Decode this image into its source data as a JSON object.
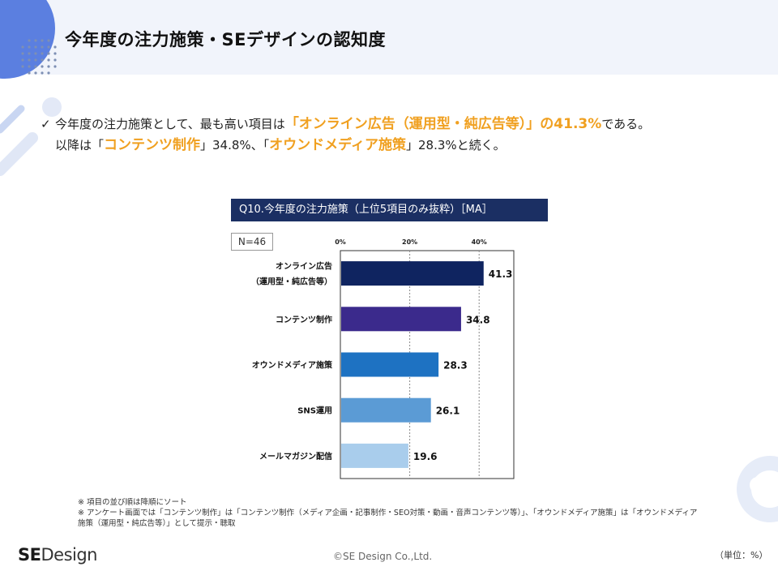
{
  "page_title": "今年度の注力施策・SEデザインの認知度",
  "summary": {
    "line1_pre": "今年度の注力施策として、最も高い項目は",
    "line1_highlight": "「オンライン広告（運用型・純広告等）」の41.3%",
    "line1_post": "である。",
    "line2_pre": "以降は「",
    "line2_highlight1": "コンテンツ制作",
    "line2_mid1": "」34.8%、「",
    "line2_highlight2": "オウンドメディア施策",
    "line2_post": "」28.3%と続く。"
  },
  "question_label": "Q10.今年度の注力施策（上位5項目のみ抜粋）［MA］",
  "n_label": "N=46",
  "chart_data": {
    "type": "bar",
    "orientation": "horizontal",
    "categories": [
      [
        "オンライン広告",
        "（運用型・純広告等）"
      ],
      [
        "コンテンツ制作"
      ],
      [
        "オウンドメディア施策"
      ],
      [
        "SNS運用"
      ],
      [
        "メールマガジン配信"
      ]
    ],
    "values": [
      41.3,
      34.8,
      28.3,
      26.1,
      19.6
    ],
    "value_labels": [
      "41.3",
      "34.8",
      "28.3",
      "26.1",
      "19.6"
    ],
    "colors": [
      "#0f2460",
      "#3b2a8c",
      "#1e72c2",
      "#5b9bd5",
      "#a9cdec"
    ],
    "x_ticks": [
      "0%",
      "20%",
      "40%"
    ],
    "x_tick_values": [
      0,
      20,
      40
    ],
    "xlim": [
      0,
      50
    ],
    "grid": true
  },
  "notes": [
    "※ 項目の並び順は降順にソート",
    "※ アンケート画面では「コンテンツ制作」は「コンテンツ制作（メディア企画・記事制作・SEO対策・動画・音声コンテンツ等）」、「オウンドメディア施策」は「オウンドメディア施策（運用型・純広告等）」として提示・聴取"
  ],
  "logo": {
    "bold": "SE",
    "rest": "Design"
  },
  "copyright": "©SE Design Co.,Ltd.",
  "unit": "（単位：%）"
}
